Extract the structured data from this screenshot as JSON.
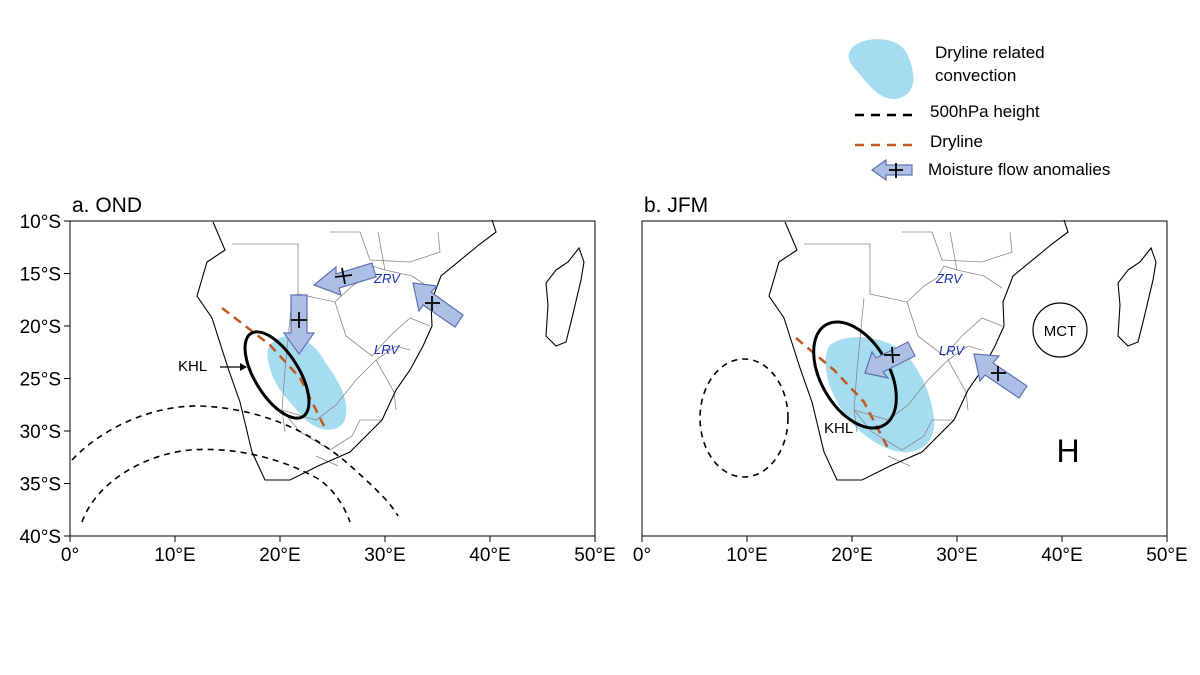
{
  "legend": {
    "convection": "Dryline related\nconvection",
    "height500": "500hPa height",
    "dryline": "Dryline",
    "moisture": "Moisture flow anomalies"
  },
  "colors": {
    "convection": "#a6dcf0",
    "dryline": "#c0581f",
    "arrow_fill": "#aebfe6",
    "arrow_stroke": "#6070b0",
    "river_text": "#1a2fb0"
  },
  "panels": [
    {
      "title": "a. OND",
      "y_ticks": [
        "10°S",
        "15°S",
        "20°S",
        "25°S",
        "30°S",
        "35°S",
        "40°S"
      ],
      "x_ticks": [
        "0°",
        "10°E",
        "20°E",
        "30°E",
        "40°E",
        "50°E"
      ],
      "labels": {
        "khl": "KHL",
        "zrv": "ZRV",
        "lrv": "LRV"
      }
    },
    {
      "title": "b. JFM",
      "y_ticks": [
        "",
        "",
        "",
        "",
        "",
        "",
        ""
      ],
      "x_ticks": [
        "0°",
        "10°E",
        "20°E",
        "30°E",
        "40°E",
        "50°E"
      ],
      "labels": {
        "khl": "KHL",
        "zrv": "ZRV",
        "lrv": "LRV",
        "mct": "MCT",
        "high": "H"
      }
    }
  ]
}
